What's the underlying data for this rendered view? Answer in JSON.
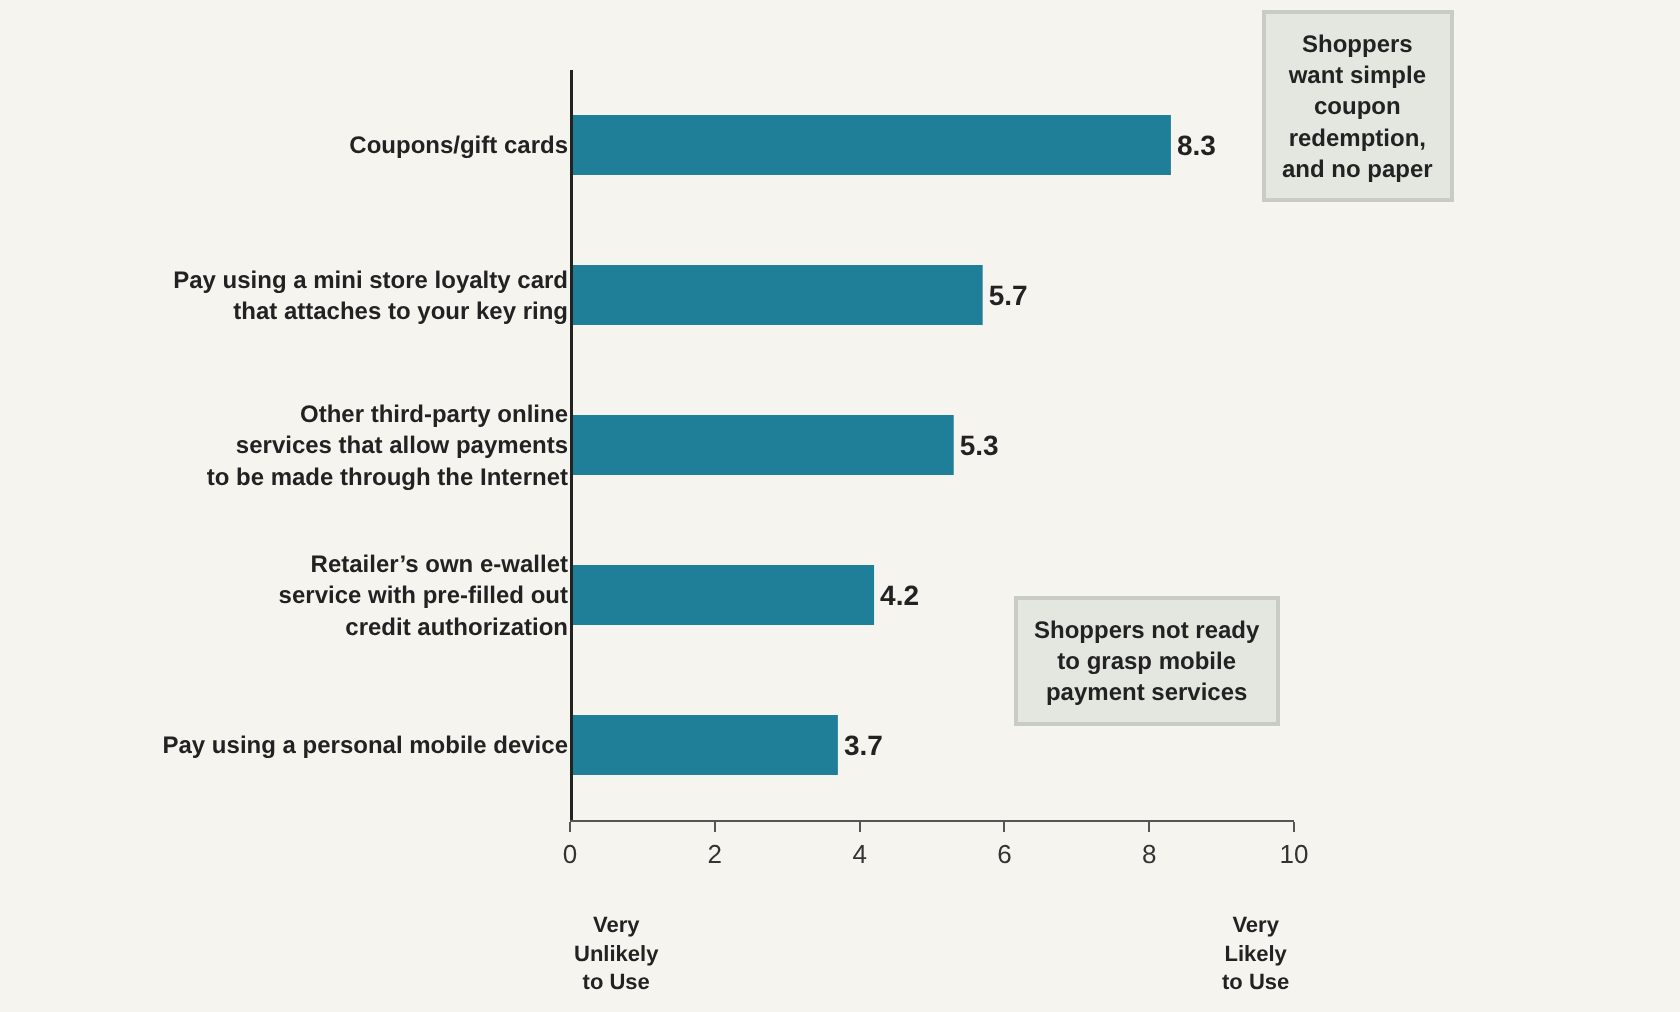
{
  "chart_data": {
    "type": "bar",
    "orientation": "horizontal",
    "categories": [
      "Coupons/gift cards",
      "Pay using a mini store loyalty card\nthat attaches to your key ring",
      "Other third-party online\nservices that allow payments\nto be made through the Internet",
      "Retailer’s own e-wallet\nservice with pre-filled out\ncredit authorization",
      "Pay using a personal mobile device"
    ],
    "values": [
      8.3,
      5.7,
      5.3,
      4.2,
      3.7
    ],
    "color": "#1f7f99",
    "data_labels": true,
    "xlim": [
      0,
      10
    ],
    "xticks": [
      0,
      2,
      4,
      6,
      8,
      10
    ],
    "annotations": [
      "Very\nUnlikely\nto Use",
      "Very\nLikely\nto Use",
      "Shoppers\nwant simple\ncoupon\nredemption,\nand no paper",
      "Shoppers not ready\nto grasp mobile\npayment services"
    ]
  }
}
